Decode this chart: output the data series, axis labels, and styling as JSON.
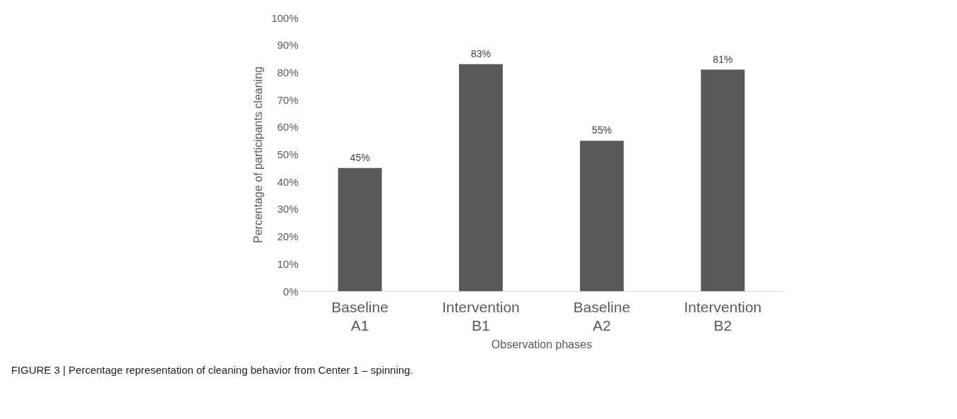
{
  "chart_data": {
    "type": "bar",
    "categories": [
      "Baseline\nA1",
      "Intervention\nB1",
      "Baseline\nA2",
      "Intervention\nB2"
    ],
    "values": [
      45,
      83,
      55,
      81
    ],
    "value_labels": [
      "45%",
      "83%",
      "55%",
      "81%"
    ],
    "color": "#595959",
    "ylabel": "Percentage of participants cleaning",
    "xlabel": "Observation phases",
    "ylim": [
      0,
      100
    ],
    "yticks": [
      {
        "value": 0,
        "label": "0%"
      },
      {
        "value": 10,
        "label": "10%"
      },
      {
        "value": 20,
        "label": "20%"
      },
      {
        "value": 30,
        "label": "30%"
      },
      {
        "value": 40,
        "label": "40%"
      },
      {
        "value": 50,
        "label": "50%"
      },
      {
        "value": 60,
        "label": "60%"
      },
      {
        "value": 70,
        "label": "70%"
      },
      {
        "value": 80,
        "label": "80%"
      },
      {
        "value": 90,
        "label": "90%"
      },
      {
        "value": 100,
        "label": "100%"
      }
    ],
    "grid": false,
    "annotations": [
      "FIGURE 3 | Percentage representation of cleaning behavior from Center 1 – spinning."
    ]
  }
}
